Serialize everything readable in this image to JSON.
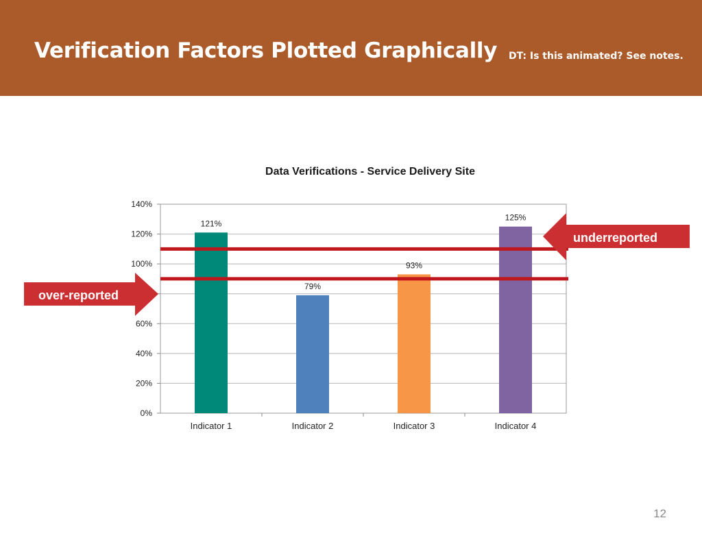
{
  "slide": {
    "title": "Verification Factors Plotted Graphically",
    "note": "DT: Is this animated? See notes.",
    "page_number": "12"
  },
  "colors": {
    "header_bg": "#ab5a2a",
    "threshold_line": "#c0171c",
    "callout_bg": "#cc2f32"
  },
  "callouts": {
    "over": "over-reported",
    "under": "underreported"
  },
  "chart_data": {
    "type": "bar",
    "title": "Data Verifications - Service Delivery Site",
    "categories": [
      "Indicator 1",
      "Indicator 2",
      "Indicator 3",
      "Indicator 4"
    ],
    "values": [
      121,
      79,
      93,
      125
    ],
    "data_labels": [
      "121%",
      "79%",
      "93%",
      "125%"
    ],
    "bar_colors": [
      "#008978",
      "#4f81bd",
      "#f79646",
      "#8064a2"
    ],
    "ylim": [
      0,
      140
    ],
    "yticks": [
      0,
      20,
      40,
      60,
      80,
      100,
      120,
      140
    ],
    "ytick_labels": [
      "0%",
      "20%",
      "40%",
      "60%",
      "80%",
      "100%",
      "120%",
      "140%"
    ],
    "xlabel": "",
    "ylabel": "",
    "grid": true,
    "threshold_lines": [
      110,
      90
    ]
  }
}
